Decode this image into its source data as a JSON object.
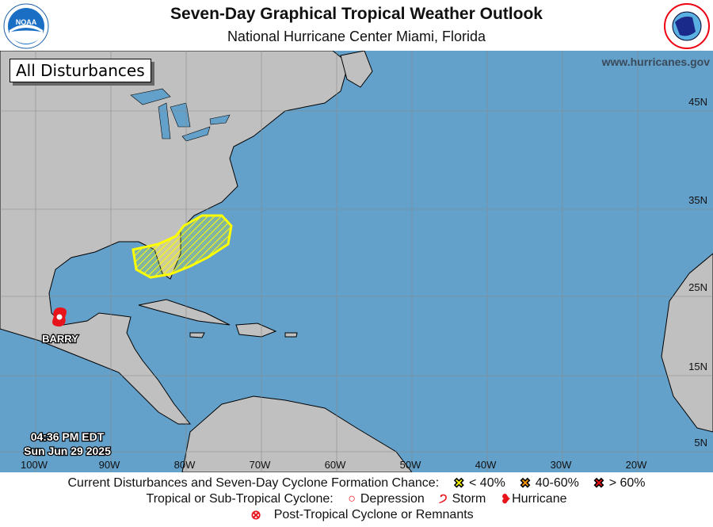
{
  "header": {
    "title": "Seven-Day Graphical Tropical Weather Outlook",
    "subtitle": "National Hurricane Center  Miami, Florida",
    "left_logo": "NOAA",
    "right_logo": "NATIONAL WEATHER SERVICE"
  },
  "map": {
    "panel_label": "All Disturbances",
    "website": "www.hurricanes.gov",
    "longitudes": [
      "100W",
      "90W",
      "80W",
      "70W",
      "60W",
      "50W",
      "40W",
      "30W",
      "20W"
    ],
    "latitudes": [
      "45N",
      "35N",
      "25N",
      "15N",
      "5N"
    ],
    "timestamp": {
      "time": "04:36 PM EDT",
      "date": "Sun Jun 29 2025"
    },
    "storms": [
      {
        "name": "BARRY",
        "type": "hurricane-icon",
        "color": "#e8141c"
      }
    ],
    "disturbances": [
      {
        "chance": "< 40%",
        "color": "#ffff00"
      }
    ],
    "colors": {
      "ocean": "#63a1cb",
      "land": "#c0c0c0"
    }
  },
  "legend": {
    "row1_label": "Current Disturbances and Seven-Day Cyclone Formation Chance:",
    "low": "< 40%",
    "med": "40-60%",
    "high": "> 60%",
    "row2_label": "Tropical or Sub-Tropical Cyclone:",
    "depression": "Depression",
    "storm": "Storm",
    "hurricane": "Hurricane",
    "post_tropical": "Post-Tropical Cyclone or Remnants",
    "colors": {
      "low": "#ffff00",
      "med": "#ff9900",
      "high": "#ee1111"
    }
  }
}
